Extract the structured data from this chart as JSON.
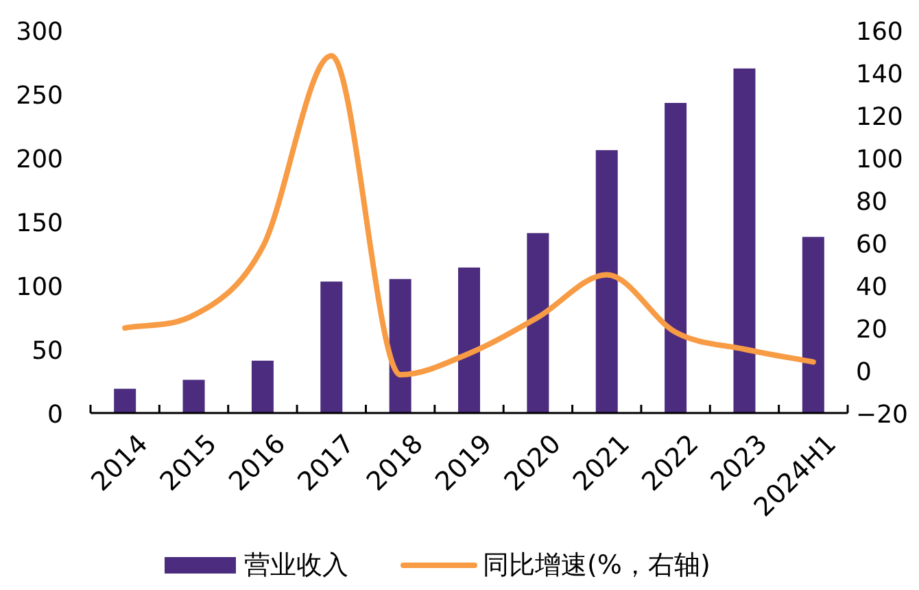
{
  "chart_data": {
    "type": "bar",
    "categories": [
      "2014",
      "2015",
      "2016",
      "2017",
      "2018",
      "2019",
      "2020",
      "2021",
      "2022",
      "2023",
      "2024H1"
    ],
    "series": [
      {
        "name": "营业收入",
        "color": "#4b2c7f",
        "values": [
          19,
          26,
          41,
          103,
          105,
          114,
          141,
          206,
          243,
          270,
          138
        ]
      },
      {
        "name": "同比增速(%，右轴)",
        "type": "line",
        "axis": "y2",
        "color": "#f79b45",
        "values": [
          20,
          26,
          58,
          148,
          -2,
          8,
          25,
          45,
          18,
          10,
          4
        ]
      }
    ],
    "ylim": [
      0,
      300
    ],
    "yticks": [
      0,
      50,
      100,
      150,
      200,
      250,
      300
    ],
    "y2lim": [
      -20,
      160
    ],
    "y2ticks": [
      -20,
      0,
      20,
      40,
      60,
      80,
      100,
      120,
      140,
      160
    ],
    "legend": "bottom",
    "grid": false,
    "marker": "none",
    "line_style": "solid"
  }
}
